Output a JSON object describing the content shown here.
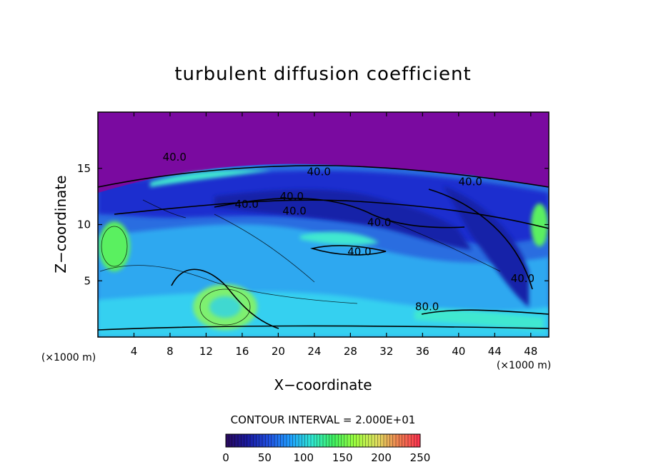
{
  "chart_data": {
    "type": "contour",
    "title": "turbulent diffusion coefficient",
    "xlabel": "X−coordinate",
    "ylabel": "Z−coordinate",
    "x_unit": "(×1000 m)",
    "y_unit": "(×1000 m)",
    "xlim": [
      0,
      50
    ],
    "ylim": [
      0,
      20
    ],
    "x_ticks": [
      4,
      8,
      12,
      16,
      20,
      24,
      28,
      32,
      36,
      40,
      44,
      48
    ],
    "y_ticks": [
      5,
      10,
      15
    ],
    "contour_interval_text": "CONTOUR INTERVAL = 2.000E+01",
    "colorbar": {
      "min": 0,
      "max": 250,
      "ticks": [
        0,
        50,
        100,
        150,
        200,
        250
      ],
      "colors": [
        "#2a0a5e",
        "#1a1aa0",
        "#2050e0",
        "#20a0ff",
        "#30e8d0",
        "#40f060",
        "#a0ff40",
        "#e0e060",
        "#f08050",
        "#ff3050"
      ]
    },
    "contour_labels": [
      {
        "text": "40.0",
        "x": 16.5,
        "z": 11.8
      },
      {
        "text": "40.0",
        "x": 21.5,
        "z": 12.5
      },
      {
        "text": "40.0",
        "x": 21.8,
        "z": 11.2
      },
      {
        "text": "40.0",
        "x": 24.5,
        "z": 14.7
      },
      {
        "text": "40.0",
        "x": 31.2,
        "z": 10.2
      },
      {
        "text": "40.0",
        "x": 29.0,
        "z": 7.6
      },
      {
        "text": "40.0",
        "x": 41.3,
        "z": 13.8
      },
      {
        "text": "40.0",
        "x": 47.1,
        "z": 5.2
      },
      {
        "text": "40.0",
        "x": 8.5,
        "z": 16.0
      },
      {
        "text": "80.0",
        "x": 36.5,
        "z": 2.7
      }
    ]
  }
}
